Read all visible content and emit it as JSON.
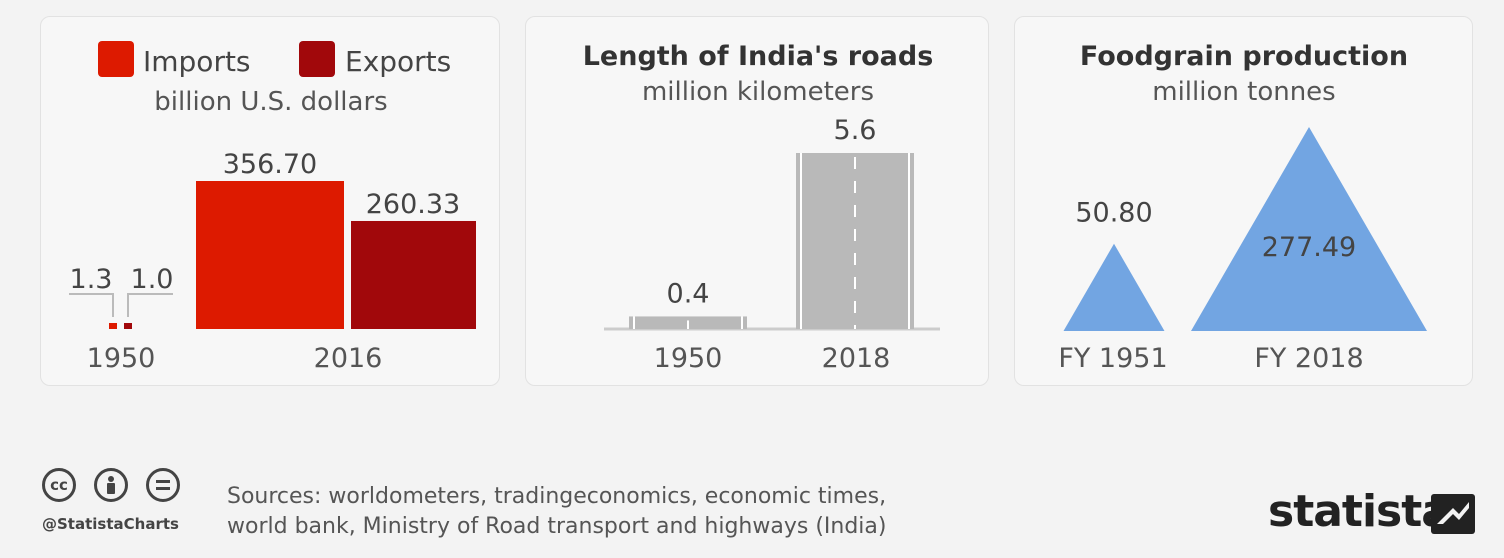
{
  "chart_data": [
    {
      "type": "bar",
      "legend": [
        "Imports",
        "Exports"
      ],
      "subtitle": "billion U.S. dollars",
      "categories": [
        "1950",
        "2016"
      ],
      "series": [
        {
          "name": "Imports",
          "values": [
            1.3,
            356.7
          ],
          "labels": [
            "1.3",
            "356.70"
          ]
        },
        {
          "name": "Exports",
          "values": [
            1.0,
            260.33
          ],
          "labels": [
            "1.0",
            "260.33"
          ]
        }
      ],
      "colors": {
        "Imports": "#dd1a00",
        "Exports": "#a1080b"
      }
    },
    {
      "type": "bar",
      "title": "Length of India's roads",
      "subtitle": "million kilometers",
      "categories": [
        "1950",
        "2018"
      ],
      "values": [
        0.4,
        5.6
      ],
      "labels": [
        "0.4",
        "5.6"
      ],
      "color": "#b9b9b9"
    },
    {
      "type": "area",
      "title": "Foodgrain production",
      "subtitle": "million tonnes",
      "categories": [
        "FY 1951",
        "FY 2018"
      ],
      "values": [
        50.8,
        277.49
      ],
      "labels": [
        "50.80",
        "277.49"
      ],
      "color": "#72a5e2"
    }
  ],
  "footer": {
    "handle": "@StatistaCharts",
    "sources_line1": "Sources: worldometers, tradingeconomics, economic times,",
    "sources_line2": "world bank, Ministry of Road transport and highways (India)",
    "brand": "statista",
    "icons": [
      "cc-icon",
      "attribution-icon",
      "no-derivatives-icon"
    ]
  }
}
